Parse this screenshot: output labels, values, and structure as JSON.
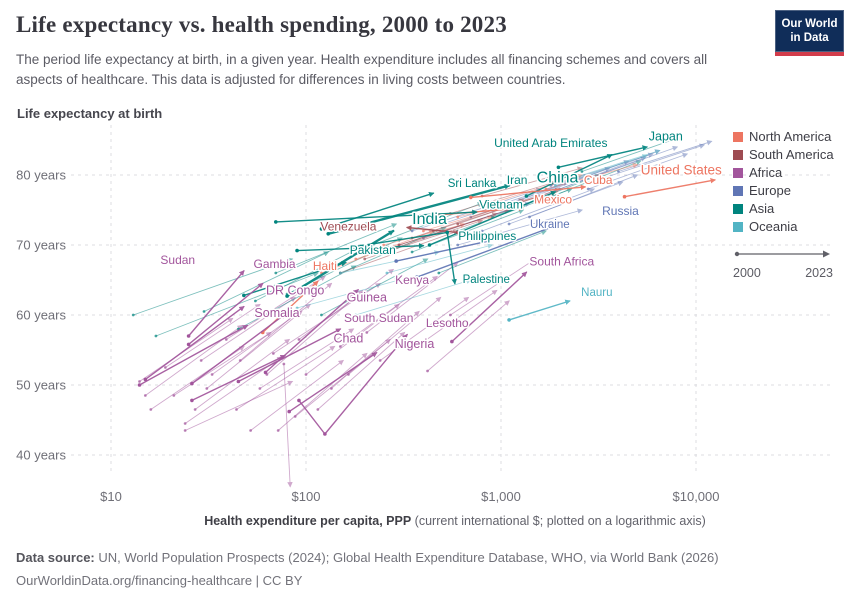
{
  "header": {
    "title": "Life expectancy vs. health spending, 2000 to 2023",
    "subtitle": "The period life expectancy at birth, in a given year. Health expenditure includes all financing schemes and covers all aspects of healthcare. This data is adjusted for differences in living costs between countries.",
    "logo": {
      "line1": "Our World",
      "line2": "in Data",
      "bg": "#102d59",
      "accent": "#d23c4b"
    }
  },
  "legend": {
    "items": [
      {
        "key": "na",
        "label": "North America"
      },
      {
        "key": "sa",
        "label": "South America"
      },
      {
        "key": "af",
        "label": "Africa"
      },
      {
        "key": "eu",
        "label": "Europe"
      },
      {
        "key": "as",
        "label": "Asia"
      },
      {
        "key": "oc",
        "label": "Oceania"
      }
    ],
    "timeline": {
      "start": "2000",
      "end": "2023"
    }
  },
  "chart_data": {
    "type": "scatter",
    "connected": true,
    "title": "Life expectancy vs. health spending, 2000 to 2023",
    "ylabel": "Life expectancy at birth",
    "xlabel_bold": "Health expenditure per capita, PPP",
    "xlabel_rest": " (current international $; plotted on a logarithmic axis)",
    "x_scale": "log",
    "xlim": [
      7,
      20000
    ],
    "ylim": [
      36,
      87
    ],
    "grid": true,
    "x_ticks": [
      {
        "label": "$10",
        "value": 10
      },
      {
        "label": "$100",
        "value": 100
      },
      {
        "label": "$1,000",
        "value": 1000
      },
      {
        "label": "$10,000",
        "value": 10000
      }
    ],
    "y_ticks": [
      {
        "label": "80 years",
        "value": 80
      },
      {
        "label": "70 years",
        "value": 70
      },
      {
        "label": "60 years",
        "value": 60
      },
      {
        "label": "50 years",
        "value": 50
      },
      {
        "label": "40 years",
        "value": 40
      }
    ],
    "continent_colors": {
      "na": "#ED7561",
      "sa": "#9E4B52",
      "af": "#A2559C",
      "eu": "#6076B5",
      "as": "#00847E",
      "oc": "#52B4C4"
    },
    "series": [
      {
        "name": "United States",
        "continent": "na",
        "points": [
          [
            4300,
            76.9
          ],
          [
            12500,
            79.3
          ]
        ],
        "label": [
          8400,
          80.1
        ],
        "label_size": 13.5
      },
      {
        "name": "Japan",
        "continent": "as",
        "points": [
          [
            1970,
            81.1
          ],
          [
            5600,
            84.0
          ]
        ],
        "label": [
          7000,
          84.9
        ],
        "label_size": 12.5
      },
      {
        "name": "United Arab Emirates",
        "continent": "as",
        "points": [
          [
            1350,
            77.0
          ],
          [
            3700,
            82.9
          ]
        ],
        "label": [
          1800,
          84.0
        ],
        "label_size": 12
      },
      {
        "name": "China",
        "continent": "as",
        "points": [
          [
            130,
            71.6
          ],
          [
            1100,
            78.5
          ]
        ],
        "label": [
          1950,
          78.9
        ],
        "label_size": 16,
        "width": 2.4
      },
      {
        "name": "Cuba",
        "continent": "na",
        "points": [
          [
            700,
            76.8
          ],
          [
            2700,
            78.3
          ]
        ],
        "label": [
          3150,
          78.7
        ],
        "label_size": 12
      },
      {
        "name": "Iran",
        "continent": "as",
        "points": [
          [
            430,
            70.0
          ],
          [
            1900,
            77.6
          ]
        ],
        "label": [
          1210,
          78.7
        ],
        "label_size": 12
      },
      {
        "name": "Sri Lanka",
        "continent": "as",
        "points": [
          [
            120,
            72.3
          ],
          [
            450,
            77.4
          ]
        ],
        "label": [
          710,
          78.3
        ],
        "label_size": 11.5
      },
      {
        "name": "Mexico",
        "continent": "na",
        "points": [
          [
            480,
            74.3
          ],
          [
            1300,
            75.3
          ]
        ],
        "label": [
          1850,
          75.9
        ],
        "label_size": 12
      },
      {
        "name": "Vietnam",
        "continent": "as",
        "points": [
          [
            70,
            73.3
          ],
          [
            750,
            74.7
          ]
        ],
        "label": [
          1000,
          75.2
        ],
        "label_size": 12
      },
      {
        "name": "Russia",
        "continent": "eu",
        "points": [
          [
            370,
            65.4
          ],
          [
            2100,
            73.2
          ]
        ],
        "label": [
          4100,
          74.3
        ],
        "label_size": 12
      },
      {
        "name": "Ukraine",
        "continent": "eu",
        "points": [
          [
            290,
            67.7
          ],
          [
            1100,
            71.2
          ]
        ],
        "label": [
          1780,
          72.4
        ],
        "label_size": 11.5
      },
      {
        "name": "India",
        "continent": "as",
        "points": [
          [
            80,
            62.7
          ],
          [
            280,
            72.0
          ]
        ],
        "label": [
          430,
          73.0
        ],
        "label_size": 16,
        "width": 2.4
      },
      {
        "name": "Venezuela",
        "continent": "sa",
        "points": [
          [
            600,
            71.8
          ],
          [
            330,
            72.5
          ]
        ],
        "label": [
          165,
          72.1
        ],
        "label_size": 12
      },
      {
        "name": "Philippines",
        "continent": "as",
        "points": [
          [
            90,
            69.2
          ],
          [
            400,
            69.9
          ]
        ],
        "label": [
          850,
          70.7
        ],
        "label_size": 12
      },
      {
        "name": "Pakistan",
        "continent": "as",
        "points": [
          [
            48,
            62.8
          ],
          [
            160,
            67.5
          ]
        ],
        "label": [
          220,
          68.7
        ],
        "label_size": 12
      },
      {
        "name": "Sudan",
        "continent": "af",
        "points": [
          [
            25,
            57.0
          ],
          [
            48,
            66.3
          ]
        ],
        "label": [
          22,
          67.3
        ],
        "label_size": 12
      },
      {
        "name": "Gambia",
        "continent": "af",
        "points": [
          [
            25,
            55.8
          ],
          [
            60,
            64.5
          ]
        ],
        "label": [
          69,
          66.7
        ],
        "label_size": 12
      },
      {
        "name": "Haiti",
        "continent": "na",
        "points": [
          [
            60,
            57.5
          ],
          [
            115,
            64.8
          ]
        ],
        "label": [
          125,
          66.4
        ],
        "label_size": 12
      },
      {
        "name": "Kenya",
        "continent": "af",
        "points": [
          [
            62,
            51.8
          ],
          [
            185,
            63.6
          ]
        ],
        "label": [
          350,
          64.4
        ],
        "label_size": 12
      },
      {
        "name": "South Africa",
        "continent": "af",
        "points": [
          [
            560,
            56.2
          ],
          [
            1350,
            66.1
          ]
        ],
        "label": [
          2050,
          67.1
        ],
        "label_size": 12
      },
      {
        "name": "Palestine",
        "continent": "as",
        "points": [
          [
            180,
            69.8
          ],
          [
            530,
            71.8
          ],
          [
            580,
            64.5
          ]
        ],
        "label": [
          840,
          64.6
        ],
        "label_size": 11.5
      },
      {
        "name": "DR Congo",
        "continent": "af",
        "points": [
          [
            15,
            50.8
          ],
          [
            48,
            61.2
          ]
        ],
        "label": [
          88,
          62.9
        ],
        "label_size": 12.5
      },
      {
        "name": "Guinea",
        "continent": "af",
        "points": [
          [
            26,
            50.2
          ],
          [
            78,
            60.1
          ]
        ],
        "label": [
          205,
          61.9
        ],
        "label_size": 12.5
      },
      {
        "name": "Nauru",
        "continent": "oc",
        "points": [
          [
            1100,
            59.3
          ],
          [
            2250,
            62.0
          ]
        ],
        "label": [
          3100,
          62.7
        ],
        "label_size": 11.5
      },
      {
        "name": "Somalia",
        "continent": "af",
        "points": [
          [
            14,
            50.0
          ],
          [
            50,
            58.5
          ]
        ],
        "label": [
          71,
          59.7
        ],
        "label_size": 12.5
      },
      {
        "name": "South Sudan",
        "continent": "af",
        "points": [
          [
            45,
            50.5
          ],
          [
            150,
            58.0
          ]
        ],
        "label": [
          236,
          59.0
        ],
        "label_size": 12
      },
      {
        "name": "Lesotho",
        "continent": "af",
        "points": [
          [
            92,
            47.8
          ],
          [
            125,
            43.0
          ],
          [
            330,
            57.2
          ]
        ],
        "label": [
          530,
          58.3
        ],
        "label_size": 12
      },
      {
        "name": "Chad",
        "continent": "af",
        "points": [
          [
            26,
            47.8
          ],
          [
            78,
            54.2
          ]
        ],
        "label": [
          165,
          56.1
        ],
        "label_size": 12.5
      },
      {
        "name": "Nigeria",
        "continent": "af",
        "points": [
          [
            82,
            46.2
          ],
          [
            230,
            54.6
          ]
        ],
        "label": [
          360,
          55.3
        ],
        "label_size": 12.5
      }
    ],
    "background_lines": [
      [
        "af",
        16,
        46.5,
        48,
        55.5
      ],
      [
        "af",
        24,
        44.5,
        75,
        54
      ],
      [
        "af",
        14,
        50.5,
        42,
        59.5
      ],
      [
        "af",
        33,
        51.5,
        105,
        61.5
      ],
      [
        "af",
        21,
        48.5,
        66,
        57.5
      ],
      [
        "af",
        58,
        49.5,
        175,
        58
      ],
      [
        "af",
        44,
        46.5,
        140,
        55.5
      ],
      [
        "af",
        29,
        53.5,
        88,
        62.5
      ],
      [
        "af",
        68,
        54.5,
        240,
        64.5
      ],
      [
        "af",
        100,
        51.5,
        300,
        61.5
      ],
      [
        "af",
        135,
        49.5,
        380,
        60.5
      ],
      [
        "af",
        52,
        43.5,
        155,
        53.5
      ],
      [
        "af",
        88,
        45.5,
        270,
        56.5
      ],
      [
        "af",
        19,
        52.5,
        58,
        61.5
      ],
      [
        "af",
        39,
        56.5,
        125,
        65.5
      ],
      [
        "af",
        150,
        55.5,
        470,
        65.5
      ],
      [
        "af",
        240,
        53.5,
        680,
        62.5
      ],
      [
        "af",
        15,
        48.5,
        47,
        58.5
      ],
      [
        "af",
        27,
        46.5,
        82,
        56.5
      ],
      [
        "af",
        63,
        51.5,
        195,
        63.5
      ],
      [
        "af",
        115,
        46.5,
        320,
        57.5
      ],
      [
        "af",
        72,
        43.5,
        205,
        54.5
      ],
      [
        "af",
        165,
        51.5,
        490,
        62.5
      ],
      [
        "af",
        31,
        49.5,
        95,
        60.5
      ],
      [
        "af",
        46,
        53.5,
        135,
        64.5
      ],
      [
        "af",
        205,
        57.5,
        600,
        67.5
      ],
      [
        "af",
        370,
        55.5,
        950,
        63.5
      ],
      [
        "af",
        92,
        56.5,
        280,
        66.5
      ],
      [
        "af",
        24,
        43.5,
        85,
        50.5
      ],
      [
        "af",
        77,
        53,
        83,
        35.5
      ],
      [
        "af",
        550,
        60,
        1500,
        68
      ],
      [
        "af",
        420,
        52,
        1100,
        62
      ],
      [
        "as",
        13,
        60,
        85,
        68
      ],
      [
        "as",
        17,
        57,
        115,
        66
      ],
      [
        "as",
        55,
        62,
        200,
        70
      ],
      [
        "as",
        30,
        60.5,
        130,
        69
      ],
      [
        "as",
        70,
        66,
        290,
        73
      ],
      [
        "as",
        150,
        66,
        520,
        72.5
      ],
      [
        "as",
        45,
        58,
        180,
        67
      ],
      [
        "as",
        220,
        70,
        800,
        76
      ],
      [
        "as",
        350,
        69,
        1300,
        75
      ],
      [
        "as",
        600,
        72,
        2300,
        78
      ],
      [
        "as",
        900,
        74,
        3200,
        80
      ],
      [
        "as",
        120,
        60,
        420,
        68
      ],
      [
        "as",
        1500,
        76,
        5200,
        82
      ],
      [
        "as",
        2600,
        80.5,
        8500,
        85.5
      ],
      [
        "as",
        80,
        63,
        310,
        71
      ],
      [
        "as",
        480,
        66,
        1700,
        72
      ],
      [
        "eu",
        500,
        73,
        2200,
        79
      ],
      [
        "eu",
        700,
        74,
        2800,
        80
      ],
      [
        "eu",
        900,
        75,
        3600,
        81
      ],
      [
        "eu",
        1200,
        76,
        4500,
        82
      ],
      [
        "eu",
        1600,
        77,
        5500,
        82.5
      ],
      [
        "eu",
        2000,
        78,
        6500,
        83.5
      ],
      [
        "eu",
        2500,
        79,
        8000,
        84
      ],
      [
        "eu",
        400,
        71,
        1800,
        77
      ],
      [
        "eu",
        300,
        70,
        1400,
        76
      ],
      [
        "eu",
        1100,
        73,
        4200,
        79
      ],
      [
        "eu",
        1800,
        78.5,
        6000,
        83
      ],
      [
        "eu",
        2800,
        78,
        9000,
        83
      ],
      [
        "eu",
        3300,
        79.5,
        11000,
        84.3
      ],
      [
        "eu",
        600,
        70,
        2600,
        75
      ],
      [
        "eu",
        800,
        72,
        3000,
        78
      ],
      [
        "eu",
        1400,
        74,
        5000,
        80
      ],
      [
        "eu",
        350,
        72,
        1600,
        78
      ],
      [
        "eu",
        4000,
        80.5,
        12000,
        84.8
      ],
      [
        "na",
        250,
        70,
        900,
        74
      ],
      [
        "na",
        400,
        72,
        1200,
        76
      ],
      [
        "na",
        600,
        74,
        1900,
        77.5
      ],
      [
        "na",
        180,
        68,
        650,
        73
      ],
      [
        "na",
        900,
        76,
        2600,
        80
      ],
      [
        "na",
        120,
        66,
        450,
        72
      ],
      [
        "na",
        1700,
        78,
        5000,
        81.5
      ],
      [
        "sa",
        300,
        70,
        1100,
        75
      ],
      [
        "sa",
        450,
        72,
        1600,
        77
      ],
      [
        "sa",
        200,
        68,
        800,
        73.5
      ],
      [
        "sa",
        600,
        73,
        2000,
        78
      ],
      [
        "sa",
        150,
        66,
        600,
        72
      ],
      [
        "sa",
        350,
        71,
        1300,
        76.5
      ],
      [
        "sa",
        800,
        77,
        2600,
        81
      ],
      [
        "sa",
        250,
        69,
        950,
        74.5
      ],
      [
        "sa",
        550,
        74.5,
        1900,
        79
      ],
      [
        "oc",
        150,
        66,
        480,
        69
      ],
      [
        "oc",
        90,
        61,
        300,
        65
      ],
      [
        "oc",
        2300,
        79.5,
        6500,
        83.5
      ],
      [
        "oc",
        1900,
        78.5,
        5600,
        82.8
      ],
      [
        "oc",
        180,
        60,
        700,
        65
      ],
      [
        "oc",
        260,
        66,
        900,
        70
      ]
    ]
  },
  "footer": {
    "source_label": "Data source:",
    "source_text": " UN, World Population Prospects (2024); Global Health Expenditure Database, WHO, via World Bank (2026)",
    "license_link": "OurWorldinData.org/financing-healthcare",
    "license_suffix": " | CC BY"
  }
}
